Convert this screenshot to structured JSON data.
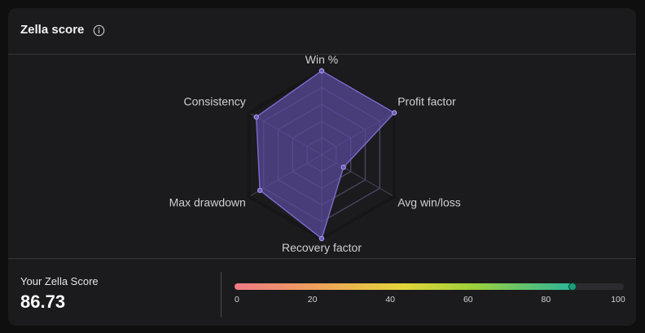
{
  "header": {
    "title": "Zella score",
    "info_icon": "info-circle-icon"
  },
  "chart_data": {
    "type": "radar",
    "axes": [
      "Win %",
      "Profit factor",
      "Avg win/loss",
      "Recovery factor",
      "Max drawdown",
      "Consistency"
    ],
    "values": [
      100,
      100,
      30,
      100,
      85,
      90
    ],
    "range": [
      0,
      100
    ],
    "rings": 5,
    "fill_color": "#5a4a9c",
    "stroke_color": "#7c68c8",
    "grid_color": "#4a4560",
    "axis_color": "#161618"
  },
  "score": {
    "label": "Your Zella Score",
    "value": "86.73",
    "bar_value": 86.73,
    "bar_min": 0,
    "bar_max": 100,
    "ticks": [
      "0",
      "20",
      "40",
      "60",
      "80",
      "100"
    ]
  }
}
